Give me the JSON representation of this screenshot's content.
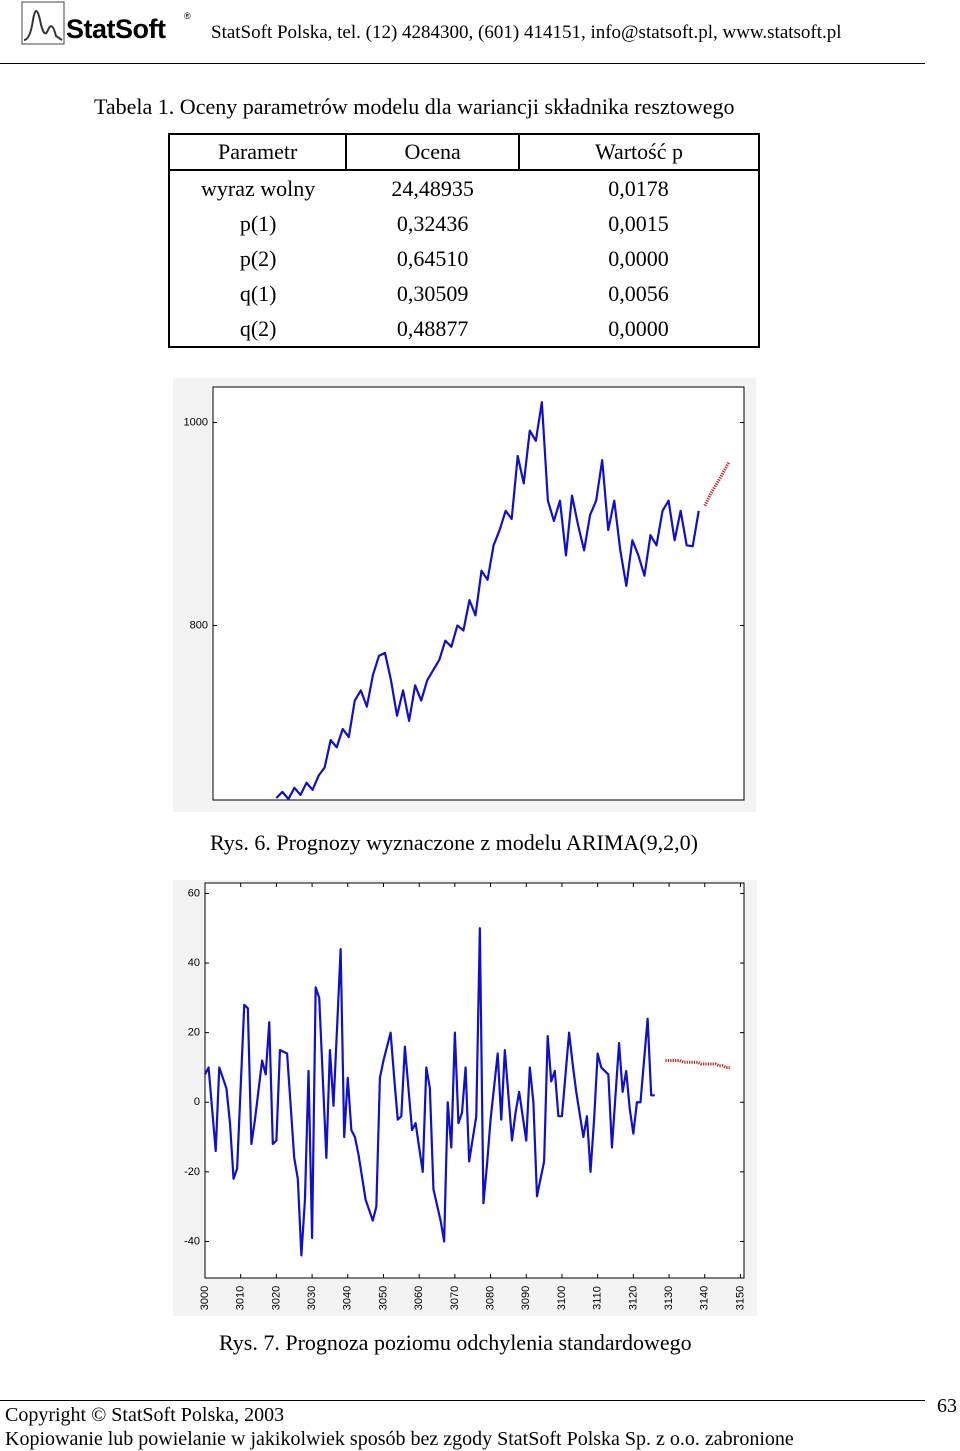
{
  "header": {
    "logo": "StatSoft",
    "logo_mark": "®",
    "contact": "StatSoft Polska, tel. (12) 4284300, (601) 414151, info@statsoft.pl, www.statsoft.pl"
  },
  "table": {
    "title": "Tabela 1. Oceny parametrów modelu dla wariancji składnika resztowego",
    "columns": [
      "Parametr",
      "Ocena",
      "Wartość p"
    ],
    "rows": [
      [
        "wyraz wolny",
        "24,48935",
        "0,0178"
      ],
      [
        "p(1)",
        "0,32436",
        "0,0015"
      ],
      [
        "p(2)",
        "0,64510",
        "0,0000"
      ],
      [
        "q(1)",
        "0,30509",
        "0,0056"
      ],
      [
        "q(2)",
        "0,48877",
        "0,0000"
      ]
    ]
  },
  "chart_data": [
    {
      "type": "line",
      "caption": "Rys. 6. Prognozy wyznaczone z modelu ARIMA(9,2,0)",
      "ylim": [
        628,
        1035
      ],
      "yticks": [
        800,
        1000
      ],
      "categories": [
        null,
        null,
        null,
        null,
        null,
        null,
        null,
        null,
        null,
        null,
        null,
        null,
        null,
        null,
        null,
        null,
        null,
        null,
        null,
        null,
        null,
        null,
        null,
        null,
        null,
        null,
        null,
        null,
        null,
        null,
        null,
        null,
        null,
        null,
        null,
        null,
        null,
        null,
        null,
        null,
        null,
        null,
        null,
        null,
        null,
        null,
        null,
        null,
        null,
        null,
        null,
        null,
        null,
        null,
        null,
        null,
        null,
        null,
        null,
        null,
        null,
        null,
        null,
        null,
        null,
        null,
        null,
        null,
        null,
        null,
        null,
        null,
        null,
        null,
        null,
        null,
        null,
        null,
        null,
        null,
        null,
        null,
        null,
        null,
        null,
        null,
        null,
        null
      ],
      "series": [
        {
          "color": "#1010c8",
          "style": "solid",
          "values": [
            null,
            null,
            null,
            null,
            null,
            null,
            null,
            null,
            null,
            null,
            630,
            636,
            629,
            640,
            633,
            645,
            638,
            652,
            660,
            687,
            680,
            698,
            690,
            726,
            736,
            720,
            751,
            770,
            773,
            746,
            711,
            736,
            706,
            741,
            726,
            746,
            756,
            766,
            785,
            779,
            800,
            795,
            825,
            810,
            854,
            845,
            879,
            894,
            913,
            905,
            967,
            940,
            992,
            982,
            1020,
            923,
            903,
            923,
            869,
            928,
            899,
            874,
            909,
            923,
            963,
            894,
            923,
            874,
            839,
            884,
            869,
            849,
            889,
            879,
            913,
            923,
            884,
            913,
            879,
            878,
            913,
            null,
            null,
            null,
            null,
            null,
            null,
            null
          ]
        },
        {
          "color": "#c01818",
          "style": "dotted",
          "values": [
            null,
            null,
            null,
            null,
            null,
            null,
            null,
            null,
            null,
            null,
            null,
            null,
            null,
            null,
            null,
            null,
            null,
            null,
            null,
            null,
            null,
            null,
            null,
            null,
            null,
            null,
            null,
            null,
            null,
            null,
            null,
            null,
            null,
            null,
            null,
            null,
            null,
            null,
            null,
            null,
            null,
            null,
            null,
            null,
            null,
            null,
            null,
            null,
            null,
            null,
            null,
            null,
            null,
            null,
            null,
            null,
            null,
            null,
            null,
            null,
            null,
            null,
            null,
            null,
            null,
            null,
            null,
            null,
            null,
            null,
            null,
            null,
            null,
            null,
            null,
            null,
            null,
            null,
            null,
            null,
            null,
            918,
            930,
            940,
            950,
            961,
            null,
            null
          ]
        }
      ]
    },
    {
      "type": "line",
      "caption": "Rys. 7. Prognoza poziomu odchylenia standardowego",
      "xlim": [
        3000,
        3151
      ],
      "xticks": [
        3000,
        3010,
        3020,
        3030,
        3040,
        3050,
        3060,
        3070,
        3080,
        3090,
        3100,
        3110,
        3120,
        3130,
        3140,
        3150
      ],
      "ylim": [
        -50.5,
        63
      ],
      "yticks": [
        -40,
        -20,
        0,
        20,
        40,
        60
      ],
      "series": [
        {
          "color": "#1010c8",
          "style": "solid",
          "x": [
            3000,
            3001,
            3003,
            3004,
            3006,
            3007,
            3008,
            3009,
            3011,
            3012,
            3013,
            3014,
            3016,
            3017,
            3018,
            3019,
            3020,
            3021,
            3023,
            3025,
            3026,
            3027,
            3028,
            3029,
            3030,
            3031,
            3032,
            3034,
            3035,
            3036,
            3038,
            3039,
            3040,
            3041,
            3042,
            3043,
            3045,
            3047,
            3048,
            3049,
            3050,
            3052,
            3053,
            3054,
            3055,
            3056,
            3058,
            3059,
            3061,
            3062,
            3063,
            3064,
            3066,
            3067,
            3068,
            3069,
            3070,
            3071,
            3072,
            3073,
            3074,
            3076,
            3077,
            3078,
            3079,
            3080,
            3082,
            3083,
            3084,
            3086,
            3087,
            3088,
            3090,
            3091,
            3092,
            3093,
            3095,
            3096,
            3097,
            3098,
            3099,
            3100,
            3102,
            3103,
            3104,
            3106,
            3107,
            3108,
            3109,
            3110,
            3111,
            3113,
            3114,
            3116,
            3117,
            3118,
            3119,
            3120,
            3121,
            3122,
            3124,
            3125,
            3126
          ],
          "values": [
            8,
            10,
            -14,
            10,
            4,
            -6,
            -22,
            -19,
            28,
            27,
            -12,
            -5,
            12,
            8,
            23,
            -12,
            -11,
            15,
            14,
            -16,
            -22,
            -44,
            -28,
            9,
            -39,
            33,
            30,
            -16,
            15,
            -1,
            44,
            -10,
            7,
            -8,
            -10,
            -15,
            -28,
            -34,
            -30,
            7,
            12,
            20,
            7,
            -5,
            -4,
            16,
            -8,
            -6,
            -20,
            10,
            4,
            -25,
            -34,
            -40,
            0,
            -13,
            20,
            -6,
            -3,
            10,
            -17,
            -4,
            50,
            -29,
            -18,
            -5,
            14,
            -5,
            15,
            -11,
            -3,
            3,
            -11,
            10,
            0,
            -27,
            -17,
            19,
            6,
            9,
            -4,
            -4,
            20,
            11,
            3,
            -10,
            -4,
            -20,
            -5,
            14,
            10,
            8,
            -13,
            17,
            3,
            9,
            -2,
            -9,
            0,
            0,
            24,
            2,
            2
          ]
        },
        {
          "color": "#c01818",
          "style": "dotted",
          "x": [
            3129,
            3130,
            3131,
            3132,
            3133,
            3134,
            3135,
            3136,
            3137,
            3138,
            3139,
            3140,
            3141,
            3142,
            3143,
            3144,
            3145,
            3146,
            3147
          ],
          "values": [
            12,
            12,
            12,
            12,
            12,
            11.5,
            11.5,
            11.5,
            11.5,
            11.5,
            11,
            11,
            11,
            11,
            11,
            10.5,
            10.5,
            10,
            10
          ]
        }
      ]
    }
  ],
  "footer": {
    "copyright": "Copyright © StatSoft Polska, 2003",
    "page": "63",
    "notice": "Kopiowanie lub powielanie w jakikolwiek sposób bez zgody StatSoft Polska Sp. z o.o. zabronione"
  }
}
